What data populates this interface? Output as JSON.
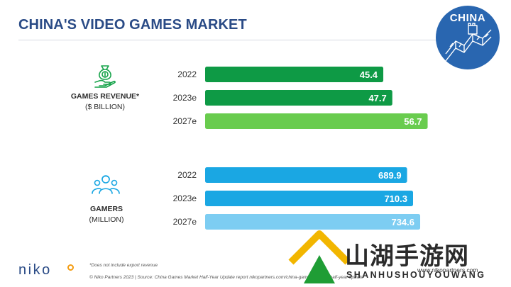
{
  "header": {
    "title": "CHINA'S VIDEO GAMES MARKET",
    "badge": "CHINA"
  },
  "categories": [
    {
      "label": "GAMES REVENUE*",
      "sublabel": "($ BILLION)",
      "icon": "money-bag-hand-icon"
    },
    {
      "label": "GAMERS",
      "sublabel": "(MILLION)",
      "icon": "people-group-icon"
    }
  ],
  "chart_data": [
    {
      "type": "bar",
      "title": "GAMES REVENUE*",
      "ylabel": "($ BILLION)",
      "categories": [
        "2022",
        "2023e",
        "2027e"
      ],
      "values": [
        45.4,
        47.7,
        56.7
      ],
      "value_labels": [
        "45.4",
        "47.7",
        "56.7"
      ],
      "colors": [
        "#0e9a45",
        "#0e9a45",
        "#69cc4e"
      ]
    },
    {
      "type": "bar",
      "title": "GAMERS",
      "ylabel": "(MILLION)",
      "categories": [
        "2022",
        "2023e",
        "2027e"
      ],
      "values": [
        689.9,
        710.3,
        734.6
      ],
      "value_labels": [
        "689.9",
        "710.3",
        "734.6"
      ],
      "colors": [
        "#1aa7e3",
        "#1aa7e3",
        "#7dcdf2"
      ]
    }
  ],
  "footer": {
    "footnote": "*Does not include export revenue",
    "source": "© Niko Partners 2023 | Source: China Games Market Half-Year Update report nikopartners.com/china-games-market-half-year-update",
    "logo": "niko",
    "url": "www.nikopartners.com"
  },
  "watermark": {
    "cn": "山湖手游网",
    "en": "SHANHUSHOUYOUWANG"
  },
  "colors": {
    "title": "#2a4b86",
    "revenue_bar": "#0e9a45",
    "revenue_forecast": "#69cc4e",
    "gamers_bar": "#1aa7e3",
    "gamers_forecast": "#7dcdf2",
    "badge": "#2966b0",
    "accent": "#f39c12"
  }
}
